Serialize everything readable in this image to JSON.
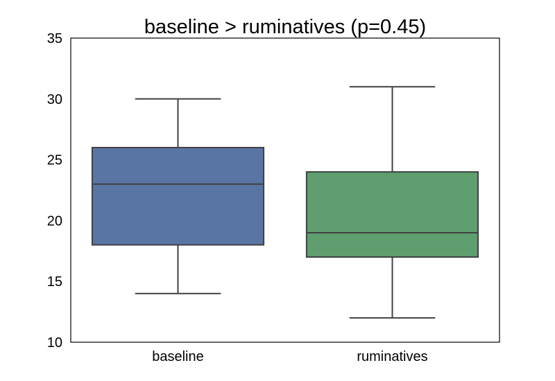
{
  "chart_data": {
    "type": "box",
    "title": "baseline > ruminatives (p=0.45)",
    "xlabel": "",
    "ylabel": "",
    "ylim": [
      10,
      35
    ],
    "yticks": [
      10,
      15,
      20,
      25,
      30,
      35
    ],
    "ytick_labels": [
      "10",
      "15",
      "20",
      "25",
      "30",
      "35"
    ],
    "grid": false,
    "categories": [
      "baseline",
      "ruminatives"
    ],
    "boxes": [
      {
        "category": "baseline",
        "whisker_low": 14,
        "q1": 18,
        "median": 23,
        "q3": 26,
        "whisker_high": 30,
        "color": "#5975a4"
      },
      {
        "category": "ruminatives",
        "whisker_low": 12,
        "q1": 17,
        "median": 19,
        "q3": 24,
        "whisker_high": 31,
        "color": "#5f9e6e"
      }
    ],
    "line_color": "#404040"
  }
}
